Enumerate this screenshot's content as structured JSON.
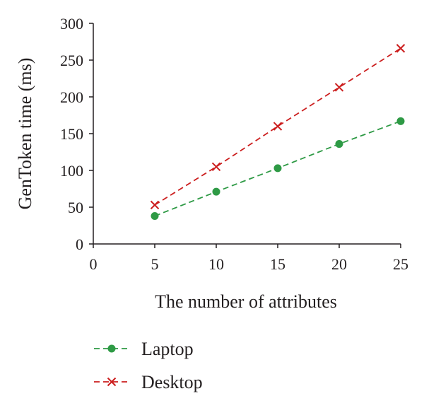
{
  "chart_data": {
    "type": "line",
    "xlabel": "The number of attributes",
    "ylabel": "GenToken time (ms)",
    "xlim": [
      0,
      25
    ],
    "ylim": [
      0,
      300
    ],
    "xticks": [
      0,
      5,
      10,
      15,
      20,
      25
    ],
    "yticks": [
      0,
      50,
      100,
      150,
      200,
      250,
      300
    ],
    "grid": false,
    "legend_position": "bottom-left",
    "x": [
      5,
      10,
      15,
      20,
      25
    ],
    "series": [
      {
        "name": "Laptop",
        "values": [
          38,
          71,
          103,
          136,
          167
        ],
        "color": "#2e9a45",
        "marker": "circle",
        "line": "dashed"
      },
      {
        "name": "Desktop",
        "values": [
          53,
          105,
          160,
          213,
          266
        ],
        "color": "#cc1f1f",
        "marker": "x",
        "line": "dashed"
      }
    ]
  }
}
